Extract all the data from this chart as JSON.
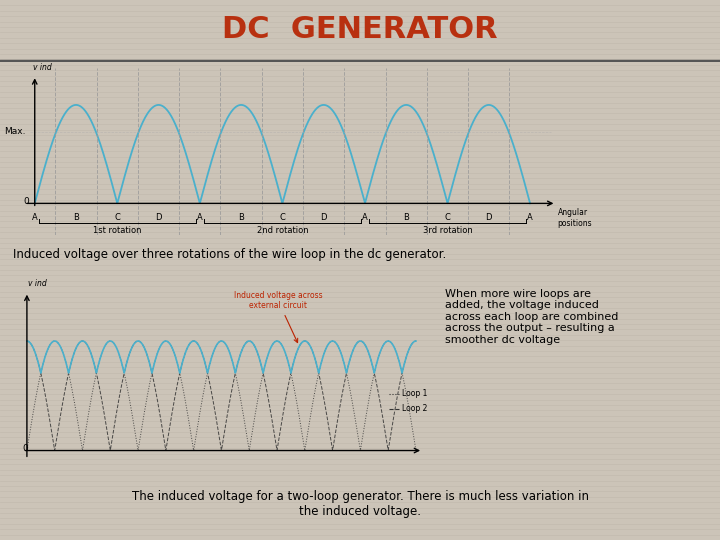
{
  "title": "DC  GENERATOR",
  "title_color": "#b83010",
  "title_fontsize": 22,
  "slide_bg": "#ccc4b8",
  "plot_bg": "#f0ede8",
  "title_bg": "#ddd8d0",
  "caption1": "Induced voltage over three rotations of the wire loop in the dc generator.",
  "caption2_left": "The induced voltage for a two-loop generator. There is much less variation in\nthe induced voltage.",
  "caption2_right": "When more wire loops are\nadded, the voltage induced\nacross each loop are combined\nacross the output – resulting a\nsmoother dc voltage",
  "x_labels_top": [
    "A",
    "B",
    "C",
    "D",
    "A",
    "B",
    "C",
    "D",
    "A",
    "B",
    "C",
    "D",
    "A"
  ],
  "rotation_labels": [
    "1st rotation",
    "2nd rotation",
    "3rd rotation"
  ],
  "angular_label": "Angular\npositions",
  "max_label": "Max.",
  "vind_label": "v ind",
  "loop1_label": "Loop 1",
  "loop2_label": "Loop 2",
  "induced_label": "Induced voltage across\nexternal circuit",
  "line_color1": "#4ab0cc",
  "line_color2": "#4ab0cc",
  "dashed_color": "#444444",
  "arrow_color": "#bb2200",
  "stripe_color": "#c0b8ac",
  "stripe_alpha": 0.5
}
